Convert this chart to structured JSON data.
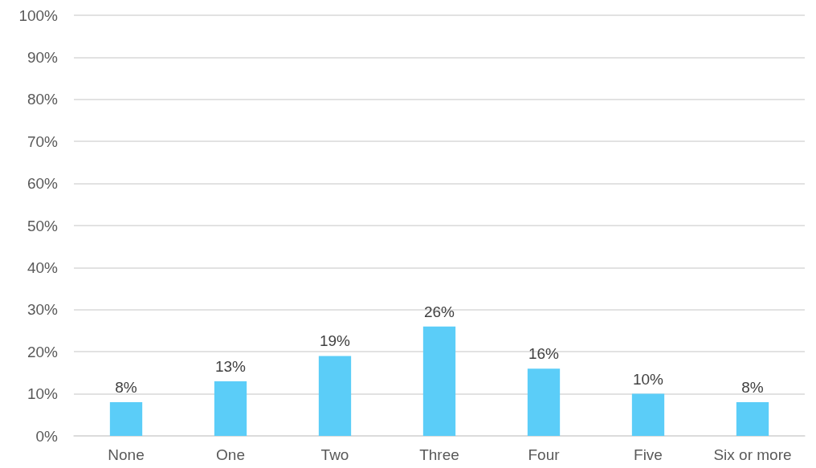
{
  "chart_data": {
    "type": "bar",
    "categories": [
      "None",
      "One",
      "Two",
      "Three",
      "Four",
      "Five",
      "Six or more"
    ],
    "values": [
      8,
      13,
      19,
      26,
      16,
      10,
      8
    ],
    "value_labels": [
      "8%",
      "13%",
      "19%",
      "26%",
      "16%",
      "10%",
      "8%"
    ],
    "color": "#5bcdf8",
    "ylim": [
      0,
      100
    ],
    "yticks": [
      {
        "value": 0,
        "label": "0%"
      },
      {
        "value": 10,
        "label": "10%"
      },
      {
        "value": 20,
        "label": "20%"
      },
      {
        "value": 30,
        "label": "30%"
      },
      {
        "value": 40,
        "label": "40%"
      },
      {
        "value": 50,
        "label": "50%"
      },
      {
        "value": 60,
        "label": "60%"
      },
      {
        "value": 70,
        "label": "70%"
      },
      {
        "value": 80,
        "label": "80%"
      },
      {
        "value": 90,
        "label": "90%"
      },
      {
        "value": 100,
        "label": "100%"
      }
    ],
    "grid": "y"
  }
}
